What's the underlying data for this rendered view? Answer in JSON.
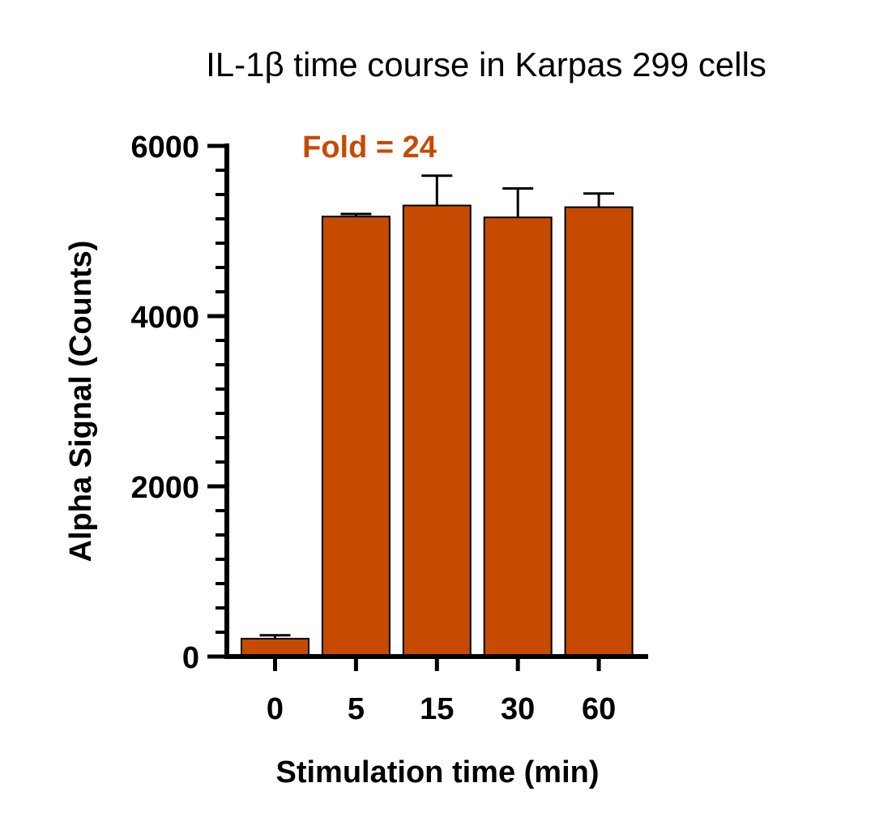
{
  "chart_data": {
    "type": "bar",
    "title": "IL-1β time course in Karpas 299 cells",
    "annotation": "Fold = 24",
    "xlabel": "Stimulation time (min)",
    "ylabel": "Alpha Signal (Counts)",
    "categories": [
      "0",
      "5",
      "15",
      "30",
      "60"
    ],
    "values": [
      210,
      5170,
      5300,
      5160,
      5280
    ],
    "error_upper": [
      250,
      5200,
      5650,
      5500,
      5440
    ],
    "ylim": [
      0,
      6000
    ],
    "yticks": [
      "0",
      "2000",
      "4000",
      "6000"
    ],
    "ytick_values": [
      0,
      2000,
      4000,
      6000
    ],
    "grid": false,
    "colors": {
      "bar": "#c64b00",
      "annotation": "#c64b00",
      "axis": "#000000"
    }
  }
}
